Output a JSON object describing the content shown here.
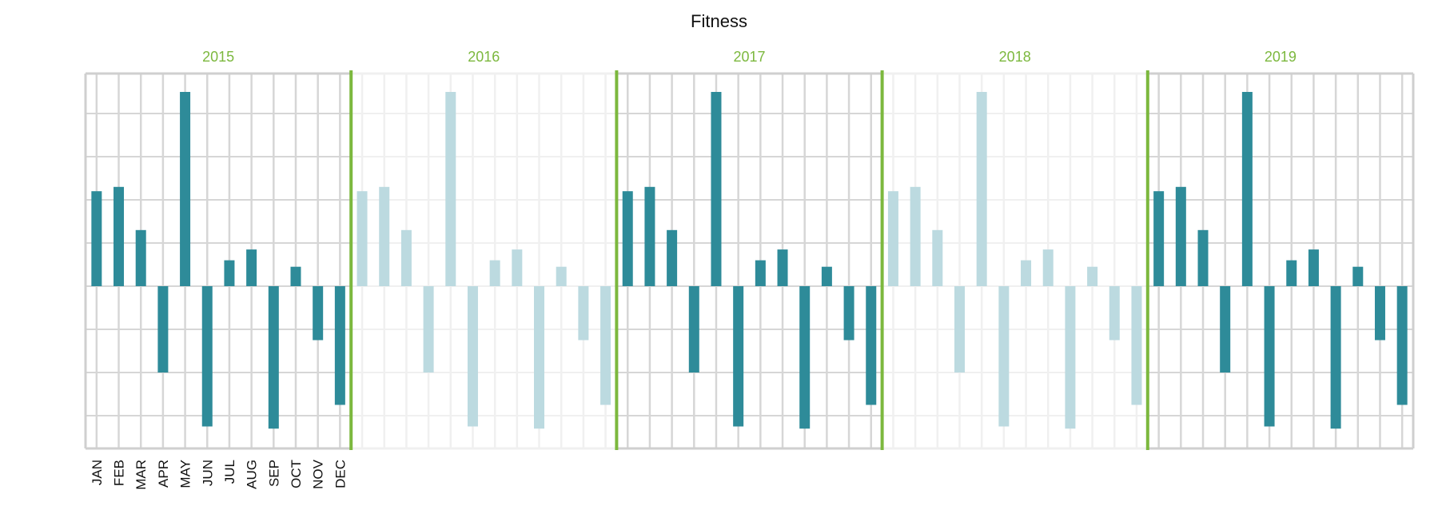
{
  "chart_data": {
    "type": "bar",
    "title": "Fitness",
    "xlabel": "",
    "ylabel": "",
    "grid": true,
    "ylim": [
      -4,
      4.6
    ],
    "years": [
      "2015",
      "2016",
      "2017",
      "2018",
      "2019"
    ],
    "highlighted_years": [
      "2015",
      "2017",
      "2019"
    ],
    "categories": [
      "JAN",
      "FEB",
      "MAR",
      "APR",
      "MAY",
      "JUN",
      "JUL",
      "AUG",
      "SEP",
      "OCT",
      "NOV",
      "DEC"
    ],
    "values": [
      2.2,
      2.3,
      1.3,
      -2.0,
      4.5,
      -3.25,
      0.6,
      0.85,
      -3.3,
      0.45,
      -1.25,
      -2.75
    ],
    "series": [
      {
        "year": "2015",
        "values": [
          2.2,
          2.3,
          1.3,
          -2.0,
          4.5,
          -3.25,
          0.6,
          0.85,
          -3.3,
          0.45,
          -1.25,
          -2.75
        ]
      },
      {
        "year": "2016",
        "values": [
          2.2,
          2.3,
          1.3,
          -2.0,
          4.5,
          -3.25,
          0.6,
          0.85,
          -3.3,
          0.45,
          -1.25,
          -2.75
        ]
      },
      {
        "year": "2017",
        "values": [
          2.2,
          2.3,
          1.3,
          -2.0,
          4.5,
          -3.25,
          0.6,
          0.85,
          -3.3,
          0.45,
          -1.25,
          -2.75
        ]
      },
      {
        "year": "2018",
        "values": [
          2.2,
          2.3,
          1.3,
          -2.0,
          4.5,
          -3.25,
          0.6,
          0.85,
          -3.3,
          0.45,
          -1.25,
          -2.75
        ]
      },
      {
        "year": "2019",
        "values": [
          2.2,
          2.3,
          1.3,
          -2.0,
          4.5,
          -3.25,
          0.6,
          0.85,
          -3.3,
          0.45,
          -1.25,
          -2.75
        ]
      }
    ]
  },
  "colors": {
    "bar": "#2e8b99",
    "bar_faded": "#bcdae0",
    "separator": "#7cb83e",
    "year_label": "#7cb83e",
    "grid": "#d6d6d6",
    "grid_faded": "#f0f0f0",
    "frame": "#cfcfcf"
  }
}
